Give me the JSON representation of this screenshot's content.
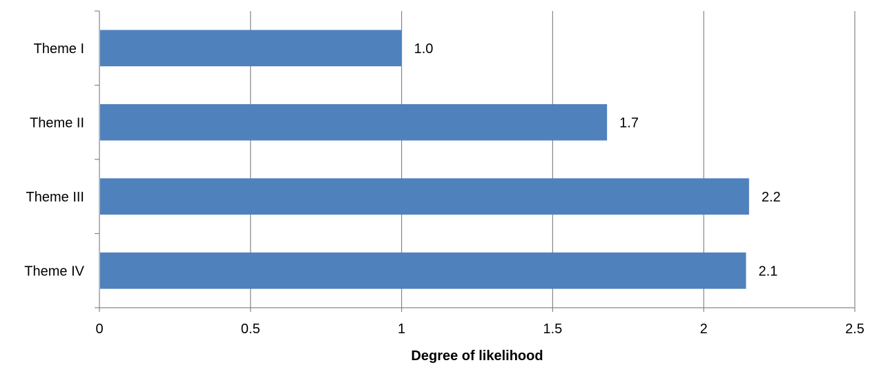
{
  "chart_data": {
    "type": "bar",
    "orientation": "horizontal",
    "categories": [
      "Theme I",
      "Theme II",
      "Theme III",
      "Theme IV"
    ],
    "values": [
      1.0,
      1.68,
      2.15,
      2.14
    ],
    "data_labels": [
      "1.0",
      "1.7",
      "2.2",
      "2.1"
    ],
    "x_ticks": [
      "0",
      "0.5",
      "1",
      "1.5",
      "2",
      "2.5"
    ],
    "x_tick_values": [
      0,
      0.5,
      1,
      1.5,
      2,
      2.5
    ],
    "xlim": [
      0,
      2.5
    ],
    "xlabel": "Degree of likelihood",
    "ylabel": "",
    "title": "",
    "grid": "vertical",
    "legend": "none",
    "bar_color": "#4f81bd",
    "grid_color": "#868686"
  }
}
